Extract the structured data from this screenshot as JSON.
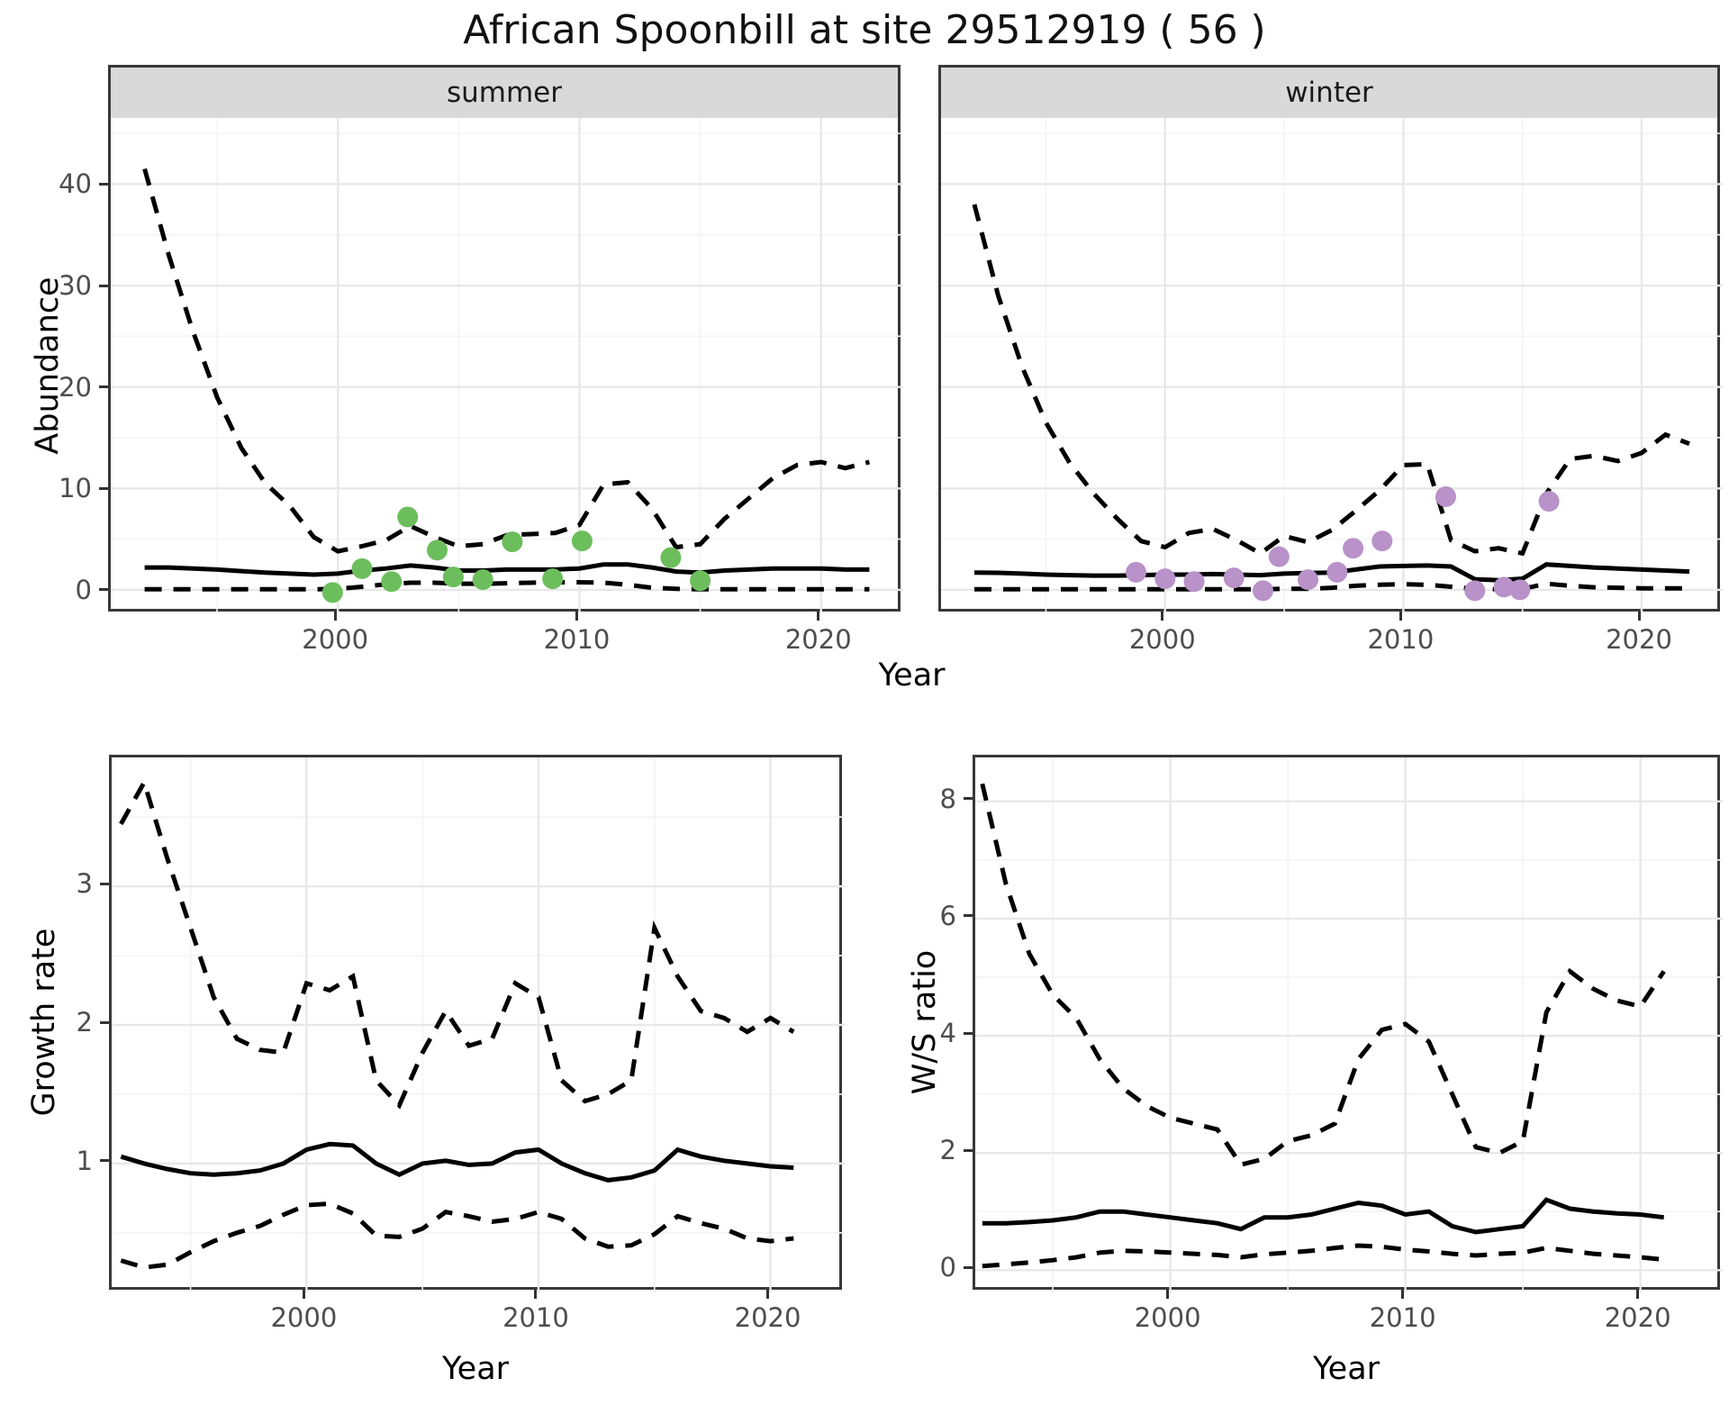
{
  "title": "African Spoonbill at site 29512919 ( 56 )",
  "colors": {
    "summer_points": "#6CBE5C",
    "winter_points": "#B892C8",
    "line": "#000000",
    "grid_major": "#e8e8e8",
    "grid_minor": "#f4f4f4",
    "strip_bg": "#d9d9d9",
    "border": "#383838",
    "tick_text": "#4d4d4d"
  },
  "chart_data": [
    {
      "id": "summer",
      "type": "line",
      "facet_label": "summer",
      "xlabel": "Year",
      "ylabel": "Abundance",
      "x": [
        1992,
        1993,
        1994,
        1995,
        1996,
        1997,
        1998,
        1999,
        2000,
        2001,
        2002,
        2003,
        2004,
        2005,
        2006,
        2007,
        2008,
        2009,
        2010,
        2011,
        2012,
        2013,
        2014,
        2015,
        2016,
        2017,
        2018,
        2019,
        2020,
        2021,
        2022
      ],
      "series": [
        {
          "name": "upper_interval",
          "style": "dashed",
          "values": [
            41.5,
            33,
            25.5,
            19,
            14,
            10.5,
            8.3,
            5.2,
            3.8,
            4.3,
            4.9,
            6.3,
            5.2,
            4.3,
            4.5,
            5.4,
            5.5,
            5.6,
            6.4,
            10.4,
            10.6,
            8.0,
            4.2,
            4.5,
            7.0,
            9.0,
            11.0,
            12.3,
            12.6,
            12.0,
            12.6
          ]
        },
        {
          "name": "median",
          "style": "solid",
          "values": [
            2.2,
            2.2,
            2.1,
            2.0,
            1.85,
            1.7,
            1.6,
            1.5,
            1.6,
            1.9,
            2.1,
            2.4,
            2.2,
            1.9,
            1.9,
            2.0,
            2.0,
            2.0,
            2.1,
            2.5,
            2.5,
            2.2,
            1.8,
            1.7,
            1.9,
            2.0,
            2.1,
            2.1,
            2.1,
            2.0,
            2.0
          ]
        },
        {
          "name": "lower_interval",
          "style": "dashed",
          "values": [
            0.05,
            0.05,
            0.05,
            0.05,
            0.05,
            0.05,
            0.05,
            0.05,
            0.1,
            0.3,
            0.55,
            0.7,
            0.7,
            0.6,
            0.6,
            0.65,
            0.7,
            0.75,
            0.75,
            0.7,
            0.5,
            0.2,
            0.1,
            0.05,
            0.05,
            0.05,
            0.05,
            0.05,
            0.05,
            0.05,
            0.05
          ]
        }
      ],
      "points": {
        "name": "observed-counts",
        "color_key": "summer_points",
        "x": [
          2000,
          2001,
          2002,
          2003,
          2004,
          2005,
          2006,
          2007,
          2009,
          2010,
          2014,
          2015
        ],
        "y": [
          0,
          2,
          1,
          7,
          4,
          1,
          1,
          5,
          1,
          5,
          3,
          1
        ]
      },
      "x_ticks": [
        2000,
        2010,
        2020
      ],
      "x_minor": [
        1995,
        2005,
        2015
      ],
      "y_ticks": [
        0,
        10,
        20,
        30,
        40
      ],
      "y_minor": [
        5,
        15,
        25,
        35,
        45
      ],
      "xlim": [
        1990.6,
        2023.4
      ],
      "ylim": [
        -2.14,
        46.52
      ],
      "grid": true,
      "legend": "none"
    },
    {
      "id": "winter",
      "type": "line",
      "facet_label": "winter",
      "xlabel": "Year",
      "ylabel": "Abundance",
      "x": [
        1992,
        1993,
        1994,
        1995,
        1996,
        1997,
        1998,
        1999,
        2000,
        2001,
        2002,
        2003,
        2004,
        2005,
        2006,
        2007,
        2008,
        2009,
        2010,
        2011,
        2012,
        2013,
        2014,
        2015,
        2016,
        2017,
        2018,
        2019,
        2020,
        2021,
        2022
      ],
      "series": [
        {
          "name": "upper_interval",
          "style": "dashed",
          "values": [
            38,
            29,
            22,
            16.5,
            12.5,
            9.5,
            7.0,
            4.8,
            4.2,
            5.6,
            6.0,
            4.9,
            3.6,
            5.3,
            4.7,
            5.9,
            7.8,
            9.8,
            12.3,
            12.4,
            4.9,
            3.8,
            4.1,
            3.6,
            9.5,
            12.9,
            13.2,
            12.7,
            13.5,
            15.3,
            14.4
          ]
        },
        {
          "name": "median",
          "style": "solid",
          "values": [
            1.7,
            1.68,
            1.6,
            1.5,
            1.45,
            1.4,
            1.4,
            1.45,
            1.5,
            1.5,
            1.55,
            1.5,
            1.45,
            1.6,
            1.65,
            1.7,
            2.0,
            2.3,
            2.35,
            2.4,
            2.3,
            1.05,
            0.95,
            1.1,
            2.5,
            2.35,
            2.2,
            2.1,
            2.0,
            1.9,
            1.8
          ]
        },
        {
          "name": "lower_interval",
          "style": "dashed",
          "values": [
            0.05,
            0.05,
            0.05,
            0.05,
            0.05,
            0.05,
            0.05,
            0.05,
            0.05,
            0.05,
            0.05,
            0.05,
            0.05,
            0.1,
            0.1,
            0.2,
            0.4,
            0.5,
            0.55,
            0.5,
            0.3,
            0.1,
            0.05,
            0.1,
            0.6,
            0.4,
            0.25,
            0.2,
            0.15,
            0.15,
            0.15
          ]
        }
      ],
      "points": {
        "name": "observed-counts",
        "color_key": "winter_points",
        "x": [
          1999,
          2000,
          2001,
          2003,
          2004,
          2005,
          2006,
          2007,
          2008,
          2009,
          2012,
          2013,
          2014,
          2015,
          2016
        ],
        "y": [
          2,
          1,
          1,
          1,
          0,
          3,
          1,
          2,
          4,
          5,
          9,
          0,
          0,
          0,
          9
        ]
      },
      "x_ticks": [
        2000,
        2010,
        2020
      ],
      "x_minor": [
        1995,
        2005,
        2015
      ],
      "y_ticks": [
        0,
        10,
        20,
        30,
        40
      ],
      "y_minor": [
        5,
        15,
        25,
        35,
        45
      ],
      "xlim": [
        1990.6,
        2023.4
      ],
      "ylim": [
        -2.14,
        46.52
      ],
      "grid": true,
      "legend": "none"
    },
    {
      "id": "growth",
      "type": "line",
      "facet_label": "",
      "xlabel": "Year",
      "ylabel": "Growth rate",
      "x": [
        1992,
        1993,
        1994,
        1995,
        1996,
        1997,
        1998,
        1999,
        2000,
        2001,
        2002,
        2003,
        2004,
        2005,
        2006,
        2007,
        2008,
        2009,
        2010,
        2011,
        2012,
        2013,
        2014,
        2015,
        2016,
        2017,
        2018,
        2019,
        2020,
        2021
      ],
      "series": [
        {
          "name": "upper_interval",
          "style": "dashed",
          "values": [
            3.45,
            3.75,
            3.2,
            2.7,
            2.2,
            1.9,
            1.82,
            1.8,
            2.3,
            2.25,
            2.35,
            1.6,
            1.42,
            1.8,
            2.1,
            1.85,
            1.9,
            2.3,
            2.2,
            1.6,
            1.45,
            1.5,
            1.6,
            2.7,
            2.35,
            2.1,
            2.05,
            1.95,
            2.05,
            1.95
          ]
        },
        {
          "name": "median",
          "style": "solid",
          "values": [
            1.05,
            1.0,
            0.96,
            0.93,
            0.92,
            0.93,
            0.95,
            1.0,
            1.1,
            1.14,
            1.13,
            1.0,
            0.92,
            1.0,
            1.02,
            0.99,
            1.0,
            1.08,
            1.1,
            1.0,
            0.93,
            0.88,
            0.9,
            0.95,
            1.1,
            1.05,
            1.02,
            1.0,
            0.98,
            0.97
          ]
        },
        {
          "name": "lower_interval",
          "style": "dashed",
          "values": [
            0.3,
            0.25,
            0.27,
            0.36,
            0.44,
            0.5,
            0.55,
            0.63,
            0.7,
            0.71,
            0.64,
            0.48,
            0.47,
            0.53,
            0.65,
            0.62,
            0.58,
            0.6,
            0.65,
            0.6,
            0.46,
            0.4,
            0.41,
            0.49,
            0.62,
            0.57,
            0.53,
            0.46,
            0.44,
            0.46
          ]
        }
      ],
      "points": null,
      "x_ticks": [
        2000,
        2010,
        2020
      ],
      "x_minor": [
        1995,
        2005,
        2015
      ],
      "y_ticks": [
        1,
        2,
        3
      ],
      "y_minor": [
        0.5,
        1.5,
        2.5,
        3.5
      ],
      "xlim": [
        1991.6,
        2023.2
      ],
      "ylim": [
        0.07,
        3.93
      ],
      "grid": true,
      "legend": "none"
    },
    {
      "id": "ws",
      "type": "line",
      "facet_label": "",
      "xlabel": "Year",
      "ylabel": "W/S ratio",
      "x": [
        1992,
        1993,
        1994,
        1995,
        1996,
        1997,
        1998,
        1999,
        2000,
        2001,
        2002,
        2003,
        2004,
        2005,
        2006,
        2007,
        2008,
        2009,
        2010,
        2011,
        2012,
        2013,
        2014,
        2015,
        2016,
        2017,
        2018,
        2019,
        2020,
        2021
      ],
      "series": [
        {
          "name": "upper_interval",
          "style": "dashed",
          "values": [
            8.3,
            6.6,
            5.4,
            4.7,
            4.3,
            3.6,
            3.1,
            2.8,
            2.6,
            2.5,
            2.4,
            1.8,
            1.9,
            2.2,
            2.3,
            2.5,
            3.6,
            4.1,
            4.2,
            3.9,
            3.0,
            2.1,
            2.0,
            2.2,
            4.4,
            5.1,
            4.8,
            4.6,
            4.5,
            5.1
          ]
        },
        {
          "name": "median",
          "style": "solid",
          "values": [
            0.8,
            0.8,
            0.82,
            0.85,
            0.9,
            1.0,
            1.0,
            0.95,
            0.9,
            0.85,
            0.8,
            0.7,
            0.9,
            0.9,
            0.95,
            1.05,
            1.15,
            1.1,
            0.95,
            1.0,
            0.75,
            0.65,
            0.7,
            0.75,
            1.2,
            1.05,
            1.0,
            0.97,
            0.95,
            0.9
          ]
        },
        {
          "name": "lower_interval",
          "style": "dashed",
          "values": [
            0.07,
            0.1,
            0.13,
            0.17,
            0.22,
            0.3,
            0.33,
            0.32,
            0.3,
            0.28,
            0.26,
            0.22,
            0.27,
            0.3,
            0.33,
            0.38,
            0.42,
            0.4,
            0.35,
            0.32,
            0.28,
            0.25,
            0.28,
            0.3,
            0.38,
            0.33,
            0.28,
            0.25,
            0.22,
            0.18
          ]
        }
      ],
      "points": null,
      "x_ticks": [
        2000,
        2010,
        2020
      ],
      "x_minor": [
        1995,
        2005,
        2015
      ],
      "y_ticks": [
        0,
        2,
        4,
        6,
        8
      ],
      "y_minor": [
        1,
        3,
        5,
        7
      ],
      "xlim": [
        1991.7,
        2023.5
      ],
      "ylim": [
        -0.38,
        8.75
      ],
      "grid": true,
      "legend": "none"
    }
  ]
}
